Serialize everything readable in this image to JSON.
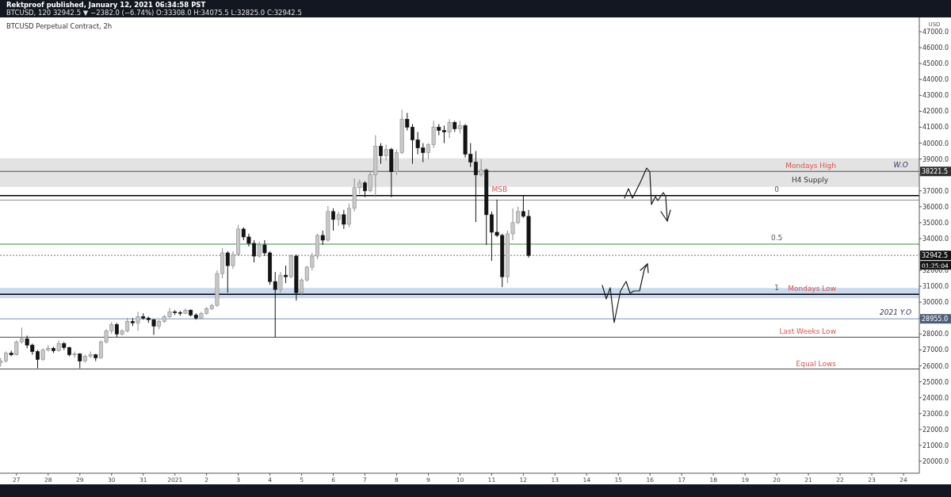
{
  "chart_data": {
    "type": "candlestick",
    "title": "BTCUSD Perpetual Contract, 2h",
    "subtitle": "Rektproof published, January 12, 2021 06:34:58 PST",
    "ylabel": "USD",
    "annotations": [
      "BTCUSD, 120 32942.5 ▼ −2382.0 (−6.74%) O:33308.0 H:34075.5 L:32825.0 C:32942.5",
      "01:25:04",
      {
        "text": "MSB",
        "x": "2021-01-11T06:00",
        "y": 36700
      },
      {
        "text": "0",
        "x": "2021-01-20T00:00",
        "y": 36700
      },
      {
        "text": "0.5",
        "x": "2021-01-20T00:00",
        "y": 33650
      },
      {
        "text": "1",
        "x": "2021-01-20T00:00",
        "y": 30500
      },
      {
        "text": "W.O",
        "x": "2021-01-23T22:00",
        "y": 38221.5
      },
      {
        "text": "2021 Y.O",
        "x": "2021-01-23T18:00",
        "y": 28955
      },
      {
        "text": "38221.5",
        "x": "2021-01-24T12:00",
        "y": 38221.5
      },
      {
        "text": "32942.5",
        "x": "2021-01-24T12:00",
        "y": 32942.5
      },
      {
        "text": "28955.0",
        "x": "2021-01-24T12:00",
        "y": 28955
      }
    ],
    "x": [
      "2020-12-26T12:00",
      "2020-12-26T16:00",
      "2020-12-26T20:00",
      "2020-12-27T00:00",
      "2020-12-27T04:00",
      "2020-12-27T08:00",
      "2020-12-27T12:00",
      "2020-12-27T16:00",
      "2020-12-27T20:00",
      "2020-12-28T00:00",
      "2020-12-28T04:00",
      "2020-12-28T08:00",
      "2020-12-28T12:00",
      "2020-12-28T16:00",
      "2020-12-28T20:00",
      "2020-12-29T00:00",
      "2020-12-29T04:00",
      "2020-12-29T08:00",
      "2020-12-29T12:00",
      "2020-12-29T16:00",
      "2020-12-29T20:00",
      "2020-12-30T00:00",
      "2020-12-30T04:00",
      "2020-12-30T08:00",
      "2020-12-30T12:00",
      "2020-12-30T16:00",
      "2020-12-30T20:00",
      "2020-12-31T00:00",
      "2020-12-31T04:00",
      "2020-12-31T08:00",
      "2020-12-31T12:00",
      "2020-12-31T16:00",
      "2020-12-31T20:00",
      "2021-01-01T00:00",
      "2021-01-01T04:00",
      "2021-01-01T08:00",
      "2021-01-01T12:00",
      "2021-01-01T16:00",
      "2021-01-01T20:00",
      "2021-01-02T00:00",
      "2021-01-02T04:00",
      "2021-01-02T08:00",
      "2021-01-02T12:00",
      "2021-01-02T16:00",
      "2021-01-02T20:00",
      "2021-01-03T00:00",
      "2021-01-03T04:00",
      "2021-01-03T08:00",
      "2021-01-03T12:00",
      "2021-01-03T16:00",
      "2021-01-03T20:00",
      "2021-01-04T00:00",
      "2021-01-04T04:00",
      "2021-01-04T08:00",
      "2021-01-04T12:00",
      "2021-01-04T16:00",
      "2021-01-04T20:00",
      "2021-01-05T00:00",
      "2021-01-05T04:00",
      "2021-01-05T08:00",
      "2021-01-05T12:00",
      "2021-01-05T16:00",
      "2021-01-05T20:00",
      "2021-01-06T00:00",
      "2021-01-06T04:00",
      "2021-01-06T08:00",
      "2021-01-06T12:00",
      "2021-01-06T16:00",
      "2021-01-06T20:00",
      "2021-01-07T00:00",
      "2021-01-07T04:00",
      "2021-01-07T08:00",
      "2021-01-07T12:00",
      "2021-01-07T16:00",
      "2021-01-07T20:00",
      "2021-01-08T00:00",
      "2021-01-08T04:00",
      "2021-01-08T08:00",
      "2021-01-08T12:00",
      "2021-01-08T16:00",
      "2021-01-08T20:00",
      "2021-01-09T00:00",
      "2021-01-09T04:00",
      "2021-01-09T08:00",
      "2021-01-09T12:00",
      "2021-01-09T16:00",
      "2021-01-09T20:00",
      "2021-01-10T00:00",
      "2021-01-10T04:00",
      "2021-01-10T08:00",
      "2021-01-10T12:00",
      "2021-01-10T16:00",
      "2021-01-10T20:00",
      "2021-01-11T00:00",
      "2021-01-11T04:00",
      "2021-01-11T08:00",
      "2021-01-11T12:00",
      "2021-01-11T16:00",
      "2021-01-11T20:00",
      "2021-01-12T00:00",
      "2021-01-12T04:00"
    ],
    "ohlc": [
      [
        26200,
        26500,
        25950,
        26300
      ],
      [
        26300,
        26900,
        26200,
        26800
      ],
      [
        26800,
        26950,
        26600,
        26700
      ],
      [
        26700,
        27600,
        26650,
        27500
      ],
      [
        27500,
        28400,
        27400,
        27700
      ],
      [
        27700,
        27900,
        27100,
        27300
      ],
      [
        27300,
        27400,
        26700,
        26900
      ],
      [
        26900,
        27000,
        25850,
        26400
      ],
      [
        26400,
        27100,
        26300,
        27000
      ],
      [
        27000,
        27300,
        26900,
        27100
      ],
      [
        27100,
        27200,
        26800,
        26950
      ],
      [
        26950,
        27600,
        26900,
        27400
      ],
      [
        27400,
        27500,
        27000,
        27150
      ],
      [
        27150,
        27200,
        26600,
        26700
      ],
      [
        26700,
        26900,
        26500,
        26750
      ],
      [
        26750,
        26800,
        25850,
        26300
      ],
      [
        26300,
        26700,
        26200,
        26600
      ],
      [
        26600,
        26900,
        26500,
        26700
      ],
      [
        26700,
        26750,
        26300,
        26500
      ],
      [
        26500,
        27600,
        26450,
        27500
      ],
      [
        27500,
        28300,
        27400,
        28200
      ],
      [
        28200,
        28750,
        28000,
        28600
      ],
      [
        28600,
        28700,
        27800,
        28000
      ],
      [
        28000,
        28300,
        27900,
        28200
      ],
      [
        28200,
        29000,
        28100,
        28800
      ],
      [
        28800,
        29000,
        28500,
        28700
      ],
      [
        28700,
        29400,
        28200,
        29100
      ],
      [
        29100,
        29300,
        28900,
        29000
      ],
      [
        29000,
        29100,
        28700,
        28900
      ],
      [
        28900,
        28950,
        27950,
        28500
      ],
      [
        28500,
        28900,
        28300,
        28800
      ],
      [
        28800,
        29200,
        28700,
        29100
      ],
      [
        29100,
        29650,
        29000,
        29400
      ],
      [
        29400,
        29500,
        29200,
        29350
      ],
      [
        29350,
        29450,
        29150,
        29300
      ],
      [
        29300,
        29600,
        29250,
        29500
      ],
      [
        29500,
        29550,
        29100,
        29200
      ],
      [
        29200,
        29300,
        28900,
        29000
      ],
      [
        29000,
        29400,
        28950,
        29300
      ],
      [
        29300,
        29700,
        29200,
        29600
      ],
      [
        29600,
        29900,
        29500,
        29800
      ],
      [
        29800,
        32000,
        29700,
        31800
      ],
      [
        31800,
        33400,
        31500,
        33100
      ],
      [
        33100,
        33200,
        30600,
        32300
      ],
      [
        32300,
        33200,
        32100,
        33000
      ],
      [
        33000,
        34870,
        32900,
        34600
      ],
      [
        34600,
        34700,
        33900,
        34100
      ],
      [
        34100,
        34300,
        33500,
        33700
      ],
      [
        33700,
        33900,
        32500,
        32900
      ],
      [
        32900,
        33800,
        32800,
        33600
      ],
      [
        33600,
        33900,
        32900,
        33100
      ],
      [
        33100,
        33200,
        31100,
        31300
      ],
      [
        31300,
        31900,
        27800,
        30800
      ],
      [
        30800,
        31900,
        30600,
        31700
      ],
      [
        31700,
        32300,
        31200,
        31600
      ],
      [
        31600,
        33000,
        31500,
        32900
      ],
      [
        32900,
        33000,
        30100,
        30600
      ],
      [
        30600,
        31500,
        30400,
        31400
      ],
      [
        31400,
        32300,
        31300,
        32200
      ],
      [
        32200,
        33100,
        32000,
        32900
      ],
      [
        32900,
        34300,
        32700,
        34200
      ],
      [
        34200,
        34500,
        33600,
        33900
      ],
      [
        33900,
        36050,
        33800,
        35700
      ],
      [
        35700,
        35900,
        34500,
        35200
      ],
      [
        35200,
        35700,
        34800,
        35500
      ],
      [
        35500,
        35800,
        34600,
        34900
      ],
      [
        34900,
        36200,
        34700,
        35900
      ],
      [
        35900,
        37780,
        35700,
        37200
      ],
      [
        37200,
        37700,
        36800,
        37500
      ],
      [
        37500,
        37600,
        36600,
        37000
      ],
      [
        37000,
        38200,
        36900,
        38000
      ],
      [
        38000,
        40500,
        36600,
        39800
      ],
      [
        39800,
        40000,
        38700,
        39200
      ],
      [
        39200,
        39900,
        38900,
        39600
      ],
      [
        39600,
        39700,
        36600,
        38200
      ],
      [
        38200,
        39600,
        38000,
        39400
      ],
      [
        39400,
        42100,
        39300,
        41500
      ],
      [
        41500,
        41900,
        40800,
        41000
      ],
      [
        41000,
        41200,
        38700,
        40200
      ],
      [
        40200,
        40700,
        39300,
        39700
      ],
      [
        39700,
        40000,
        38800,
        39400
      ],
      [
        39400,
        40000,
        39000,
        39900
      ],
      [
        39900,
        41400,
        39700,
        41000
      ],
      [
        41000,
        41200,
        40500,
        40800
      ],
      [
        40800,
        41100,
        40000,
        40700
      ],
      [
        40700,
        41500,
        40300,
        41300
      ],
      [
        41300,
        41400,
        40700,
        40900
      ],
      [
        40900,
        41400,
        40600,
        41100
      ],
      [
        41100,
        41200,
        39100,
        39300
      ],
      [
        39300,
        40000,
        38500,
        38800
      ],
      [
        38800,
        39500,
        35040,
        38000
      ],
      [
        38000,
        39000,
        37900,
        38300
      ],
      [
        38300,
        38400,
        33600,
        35500
      ],
      [
        35500,
        35700,
        32600,
        34400
      ],
      [
        34400,
        36450,
        34100,
        34200
      ],
      [
        34200,
        34300,
        30950,
        31600
      ],
      [
        31600,
        34500,
        31200,
        34300
      ],
      [
        34300,
        35900,
        33900,
        35000
      ],
      [
        35000,
        36000,
        34900,
        35700
      ],
      [
        35700,
        36700,
        35300,
        35400
      ],
      [
        35400,
        35800,
        32800,
        32942.5
      ]
    ],
    "xlim": [
      "2020-12-26T11:30",
      "2021-01-24T12:00"
    ],
    "xticks": [
      {
        "value": "2020-12-27",
        "label": "27"
      },
      {
        "value": "2020-12-28",
        "label": "28"
      },
      {
        "value": "2020-12-29",
        "label": "29"
      },
      {
        "value": "2020-12-30",
        "label": "30"
      },
      {
        "value": "2020-12-31",
        "label": "31"
      },
      {
        "value": "2021-01-01",
        "label": "2021"
      },
      {
        "value": "2021-01-02",
        "label": "2"
      },
      {
        "value": "2021-01-03",
        "label": "3"
      },
      {
        "value": "2021-01-04",
        "label": "4"
      },
      {
        "value": "2021-01-05",
        "label": "5"
      },
      {
        "value": "2021-01-06",
        "label": "6"
      },
      {
        "value": "2021-01-07",
        "label": "7"
      },
      {
        "value": "2021-01-08",
        "label": "8"
      },
      {
        "value": "2021-01-09",
        "label": "9"
      },
      {
        "value": "2021-01-10",
        "label": "10"
      },
      {
        "value": "2021-01-11",
        "label": "11"
      },
      {
        "value": "2021-01-12",
        "label": "12"
      },
      {
        "value": "2021-01-13",
        "label": "13"
      },
      {
        "value": "2021-01-14",
        "label": "14"
      },
      {
        "value": "2021-01-15",
        "label": "15"
      },
      {
        "value": "2021-01-16",
        "label": "16"
      },
      {
        "value": "2021-01-17",
        "label": "17"
      },
      {
        "value": "2021-01-18",
        "label": "18"
      },
      {
        "value": "2021-01-19",
        "label": "19"
      },
      {
        "value": "2021-01-20",
        "label": "20"
      },
      {
        "value": "2021-01-21",
        "label": "21"
      },
      {
        "value": "2021-01-22",
        "label": "22"
      },
      {
        "value": "2021-01-23",
        "label": "23"
      },
      {
        "value": "2021-01-24",
        "label": "24"
      }
    ],
    "ylim": [
      19250,
      47900
    ],
    "yticks": [
      {
        "value": 20000,
        "label": "20000.0"
      },
      {
        "value": 21000,
        "label": "21000.0"
      },
      {
        "value": 22000,
        "label": "22000.0"
      },
      {
        "value": 23000,
        "label": "23000.0"
      },
      {
        "value": 24000,
        "label": "24000.0"
      },
      {
        "value": 25000,
        "label": "25000.0"
      },
      {
        "value": 26000,
        "label": "26000.0"
      },
      {
        "value": 27000,
        "label": "27000.0"
      },
      {
        "value": 28000,
        "label": "28000.0"
      },
      {
        "value": 29000,
        "label": null
      },
      {
        "value": 30000,
        "label": "30000.0"
      },
      {
        "value": 31000,
        "label": "31000.0"
      },
      {
        "value": 32000,
        "label": "32000.0"
      },
      {
        "value": 33000,
        "label": null
      },
      {
        "value": 34000,
        "label": "34000.0"
      },
      {
        "value": 35000,
        "label": "35000.0"
      },
      {
        "value": 36000,
        "label": "36000.0"
      },
      {
        "value": 37000,
        "label": "37000.0"
      },
      {
        "value": 38000,
        "label": null
      },
      {
        "value": 39000,
        "label": "39000.0"
      },
      {
        "value": 40000,
        "label": "40000.0"
      },
      {
        "value": 41000,
        "label": "41000.0"
      },
      {
        "value": 42000,
        "label": "42000.0"
      },
      {
        "value": 43000,
        "label": "43000.0"
      },
      {
        "value": 44000,
        "label": "44000.0"
      },
      {
        "value": 45000,
        "label": "45000.0"
      },
      {
        "value": 46000,
        "label": "46000.0"
      },
      {
        "value": 47000,
        "label": "47000.0"
      }
    ],
    "ref_lines": [
      {
        "axis": "y",
        "value": 38221.5,
        "label": "Mondays High",
        "color": "#4a4a4a"
      },
      {
        "axis": "y",
        "value": 36700,
        "color": "#000000"
      },
      {
        "axis": "y",
        "value": 36420,
        "color": "#8a8a8a"
      },
      {
        "axis": "y",
        "value": 33650,
        "color": "#388e3c"
      },
      {
        "axis": "y",
        "value": 32942.5,
        "color": "#787878",
        "line_style": "dotted"
      },
      {
        "axis": "y",
        "value": 30500,
        "label": "Mondays Low",
        "color": "#000000"
      },
      {
        "axis": "y",
        "value": 28955,
        "color": "#7b93b8"
      },
      {
        "axis": "y",
        "value": 27800,
        "label": "Last Weeks Low",
        "color": "#4a4a4a"
      },
      {
        "axis": "y",
        "value": 25800,
        "label": "Equal Lows",
        "color": "#4a4a4a"
      }
    ],
    "bands": [
      {
        "axis": "y",
        "from": 37250,
        "to": 39050,
        "label": "H4 Supply",
        "color": "#d1d1d1"
      },
      {
        "axis": "y",
        "from": 30250,
        "to": 30900,
        "color": "#a9c1e4"
      }
    ]
  }
}
